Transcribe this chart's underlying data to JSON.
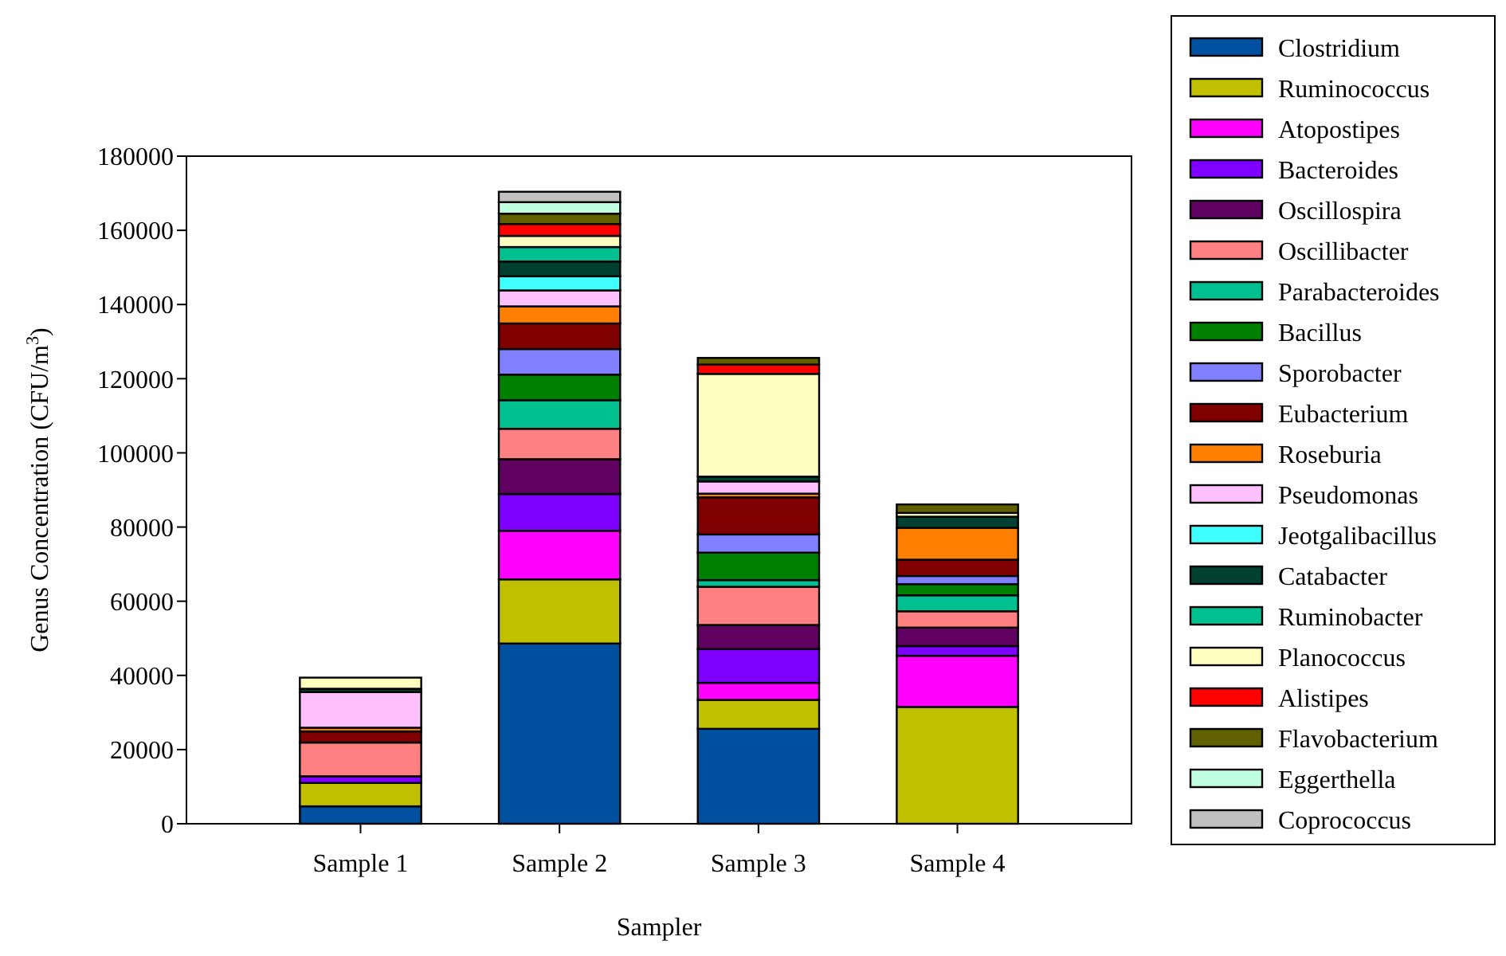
{
  "chart_data": {
    "type": "bar",
    "stacked": true,
    "xlabel": "Sampler",
    "ylabel": "Genus Concentration (CFU/m$^{3}$)",
    "categories": [
      "Sample 1",
      "Sample 2",
      "Sample 3",
      "Sample 4"
    ],
    "ylim": [
      0,
      180000
    ],
    "yticks": [
      0,
      20000,
      40000,
      60000,
      80000,
      100000,
      120000,
      140000,
      160000,
      180000
    ],
    "grid": false,
    "legend": "right",
    "series": [
      {
        "name": "Clostridium",
        "color": "#0050a0",
        "values": [
          4700,
          48600,
          25600,
          0
        ]
      },
      {
        "name": "Ruminococcus",
        "color": "#c0c000",
        "values": [
          6300,
          17300,
          7800,
          31500
        ]
      },
      {
        "name": "Atopostipes",
        "color": "#ff00ff",
        "values": [
          0,
          13100,
          4600,
          13800
        ]
      },
      {
        "name": "Bacteroides",
        "color": "#8000ff",
        "values": [
          1800,
          9900,
          9100,
          2600
        ]
      },
      {
        "name": "Oscillospira",
        "color": "#600060",
        "values": [
          0,
          9400,
          6500,
          5000
        ]
      },
      {
        "name": "Oscillibacter",
        "color": "#ff8080",
        "values": [
          9100,
          8200,
          10300,
          4400
        ]
      },
      {
        "name": "Parabacteroides",
        "color": "#00c090",
        "values": [
          0,
          7700,
          1800,
          4300
        ]
      },
      {
        "name": "Bacillus",
        "color": "#008000",
        "values": [
          0,
          6900,
          7400,
          3000
        ]
      },
      {
        "name": "Sporobacter",
        "color": "#8080ff",
        "values": [
          0,
          6900,
          4900,
          2200
        ]
      },
      {
        "name": "Eubacterium",
        "color": "#800000",
        "values": [
          3000,
          6900,
          10000,
          4400
        ]
      },
      {
        "name": "Roseburia",
        "color": "#ff8000",
        "values": [
          1000,
          4600,
          1000,
          8600
        ]
      },
      {
        "name": "Pseudomonas",
        "color": "#ffc0ff",
        "values": [
          9600,
          4300,
          3300,
          0
        ]
      },
      {
        "name": "Jeotgalibacillus",
        "color": "#40ffff",
        "values": [
          0,
          3800,
          0,
          0
        ]
      },
      {
        "name": "Catabacter",
        "color": "#004030",
        "values": [
          900,
          4000,
          1300,
          3000
        ]
      },
      {
        "name": "Ruminobacter",
        "color": "#00c090",
        "values": [
          0,
          3900,
          0,
          0
        ]
      },
      {
        "name": "Planococcus",
        "color": "#ffffc0",
        "values": [
          3000,
          3000,
          27700,
          1000
        ]
      },
      {
        "name": "Alistipes",
        "color": "#ff0000",
        "values": [
          0,
          3200,
          2500,
          0
        ]
      },
      {
        "name": "Flavobacterium",
        "color": "#606000",
        "values": [
          0,
          2800,
          1800,
          2300
        ]
      },
      {
        "name": "Eggerthella",
        "color": "#c0ffe0",
        "values": [
          0,
          3100,
          0,
          0
        ]
      },
      {
        "name": "Coprococcus",
        "color": "#c0c0c0",
        "values": [
          0,
          2800,
          0,
          0
        ]
      }
    ]
  }
}
